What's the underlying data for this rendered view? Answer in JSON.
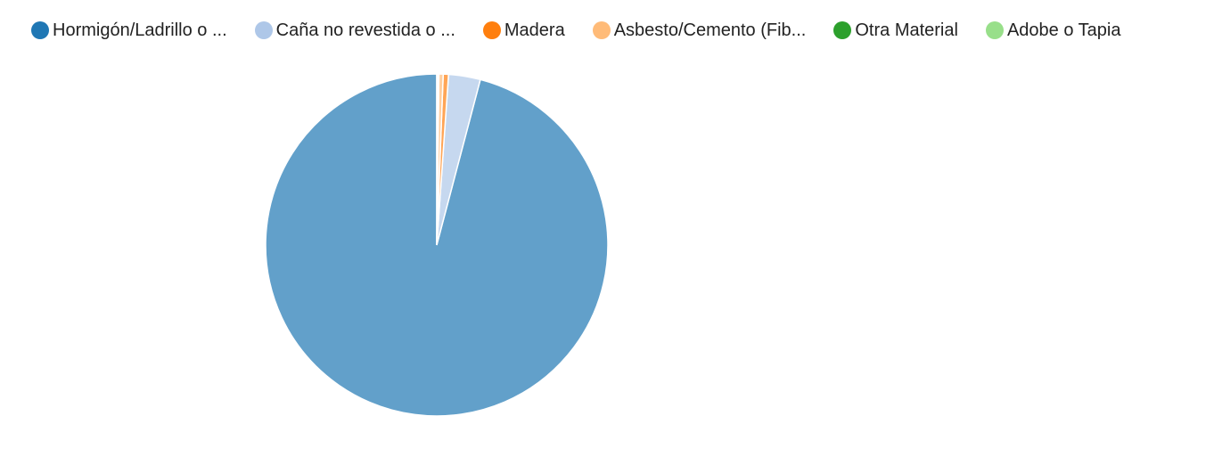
{
  "chart_data": {
    "type": "pie",
    "title": "",
    "legend_position": "top-left",
    "series": [
      {
        "name": "Hormigón/Ladrillo o ...",
        "value": 95.9,
        "color": "#1f77b4"
      },
      {
        "name": "Caña no revestida o ...",
        "value": 3.0,
        "color": "#aec7e8"
      },
      {
        "name": "Madera",
        "value": 0.5,
        "color": "#ff7f0e"
      },
      {
        "name": "Asbesto/Cemento (Fib...",
        "value": 0.4,
        "color": "#ffbb78"
      },
      {
        "name": "Otra Material",
        "value": 0.1,
        "color": "#2ca02c"
      },
      {
        "name": "Adobe o Tapia",
        "value": 0.1,
        "color": "#98df8a"
      }
    ]
  }
}
